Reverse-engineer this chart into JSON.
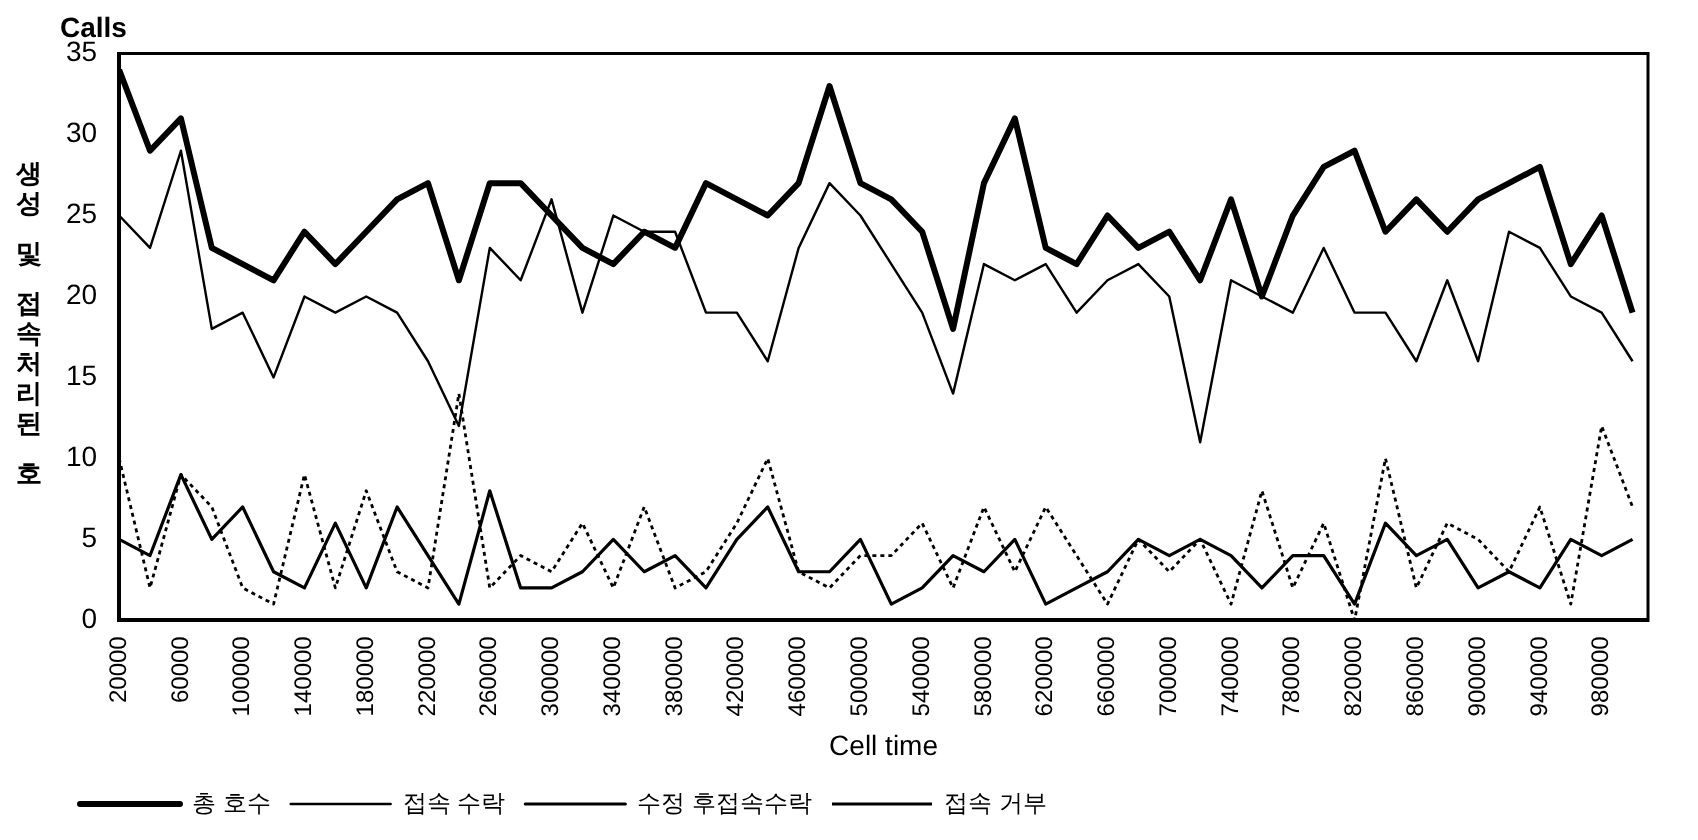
{
  "chart_data": {
    "type": "line",
    "title": "Calls",
    "ylabel": "생성 및 접속처리된 호",
    "xlabel": "Cell time",
    "x": [
      20000,
      40000,
      60000,
      80000,
      100000,
      120000,
      140000,
      160000,
      180000,
      200000,
      220000,
      240000,
      260000,
      280000,
      300000,
      320000,
      340000,
      360000,
      380000,
      400000,
      420000,
      440000,
      460000,
      480000,
      500000,
      520000,
      540000,
      560000,
      580000,
      600000,
      620000,
      640000,
      660000,
      680000,
      700000,
      720000,
      740000,
      760000,
      780000,
      800000,
      820000,
      840000,
      860000,
      880000,
      900000,
      920000,
      940000,
      960000,
      980000,
      1000000
    ],
    "series": [
      {
        "name": "총 호수",
        "color": "#000000",
        "line_style": "solid",
        "values": [
          34,
          29,
          31,
          23,
          22,
          21,
          24,
          22,
          24,
          26,
          27,
          21,
          27,
          27,
          25,
          23,
          22,
          24,
          23,
          27,
          26,
          25,
          27,
          33,
          27,
          26,
          24,
          18,
          27,
          31,
          23,
          22,
          25,
          23,
          24,
          21,
          26,
          20,
          25,
          28,
          29,
          24,
          26,
          24,
          26,
          27,
          28,
          22,
          25,
          19
        ]
      },
      {
        "name": "접속 수락",
        "color": "#000000",
        "line_style": "solid",
        "values": [
          25,
          23,
          29,
          18,
          19,
          15,
          20,
          19,
          20,
          19,
          16,
          12,
          23,
          21,
          26,
          19,
          25,
          24,
          24,
          19,
          19,
          16,
          23,
          27,
          25,
          22,
          19,
          14,
          22,
          21,
          22,
          19,
          21,
          22,
          20,
          11,
          21,
          20,
          19,
          23,
          19,
          19,
          16,
          21,
          16,
          24,
          23,
          20,
          19,
          16
        ]
      },
      {
        "name": "수정 후접속수락",
        "color": "#000000",
        "line_style": "solid",
        "values": [
          5,
          4,
          9,
          5,
          7,
          3,
          2,
          6,
          2,
          7,
          4,
          1,
          8,
          2,
          2,
          3,
          5,
          3,
          4,
          2,
          5,
          7,
          3,
          3,
          5,
          1,
          2,
          4,
          3,
          5,
          1,
          2,
          3,
          5,
          4,
          5,
          4,
          2,
          4,
          4,
          1,
          6,
          4,
          5,
          2,
          3,
          2,
          5,
          4,
          5
        ]
      },
      {
        "name": "접속 거부",
        "color": "#000000",
        "line_style": "dotted",
        "values": [
          10,
          2,
          9,
          7,
          2,
          1,
          9,
          2,
          8,
          3,
          2,
          14,
          2,
          4,
          3,
          6,
          2,
          7,
          2,
          3,
          6,
          10,
          3,
          2,
          4,
          4,
          6,
          2,
          7,
          3,
          7,
          4,
          1,
          5,
          3,
          5,
          1,
          8,
          2,
          6,
          0,
          10,
          2,
          6,
          5,
          3,
          7,
          1,
          12,
          7
        ]
      }
    ],
    "xlim": [
      20000,
      1010000
    ],
    "xticks": [
      20000,
      60000,
      100000,
      140000,
      180000,
      220000,
      260000,
      300000,
      340000,
      380000,
      420000,
      460000,
      500000,
      540000,
      580000,
      620000,
      660000,
      700000,
      740000,
      780000,
      820000,
      860000,
      900000,
      940000,
      980000
    ],
    "ylim": [
      0,
      35
    ],
    "yticks": [
      0,
      5,
      10,
      15,
      20,
      25,
      30,
      35
    ],
    "grid": false,
    "legend": "bottom left",
    "marker": "none"
  }
}
